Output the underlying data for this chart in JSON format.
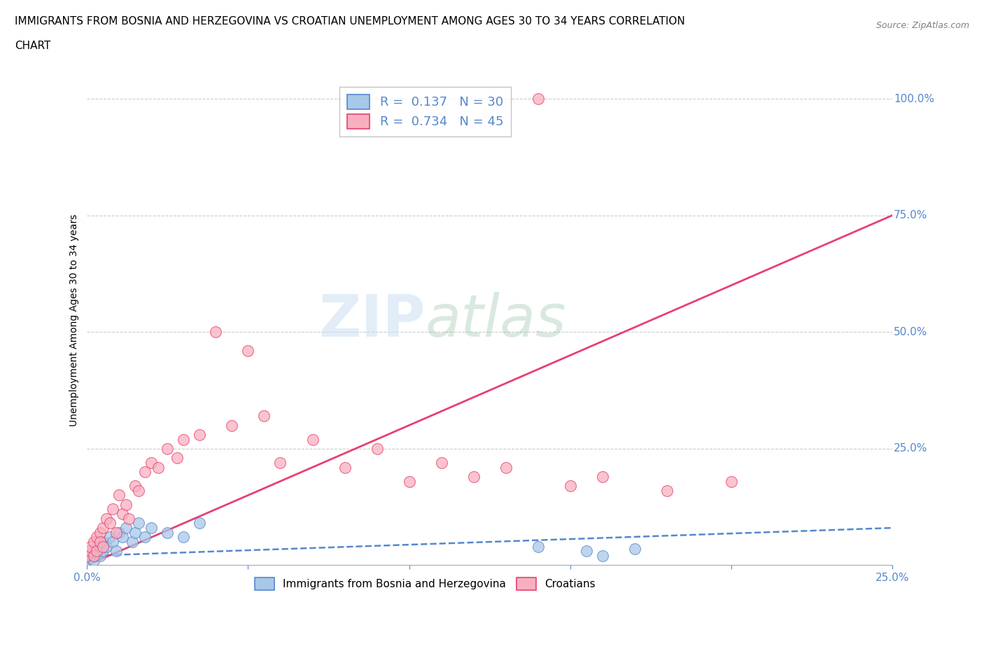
{
  "title_line1": "IMMIGRANTS FROM BOSNIA AND HERZEGOVINA VS CROATIAN UNEMPLOYMENT AMONG AGES 30 TO 34 YEARS CORRELATION",
  "title_line2": "CHART",
  "source": "Source: ZipAtlas.com",
  "ylabel_label": "Unemployment Among Ages 30 to 34 years",
  "legend1_label": "R =  0.137   N = 30",
  "legend2_label": "R =  0.734   N = 45",
  "color_blue": "#a8c8e8",
  "color_pink": "#f8b0c0",
  "line_blue": "#5588cc",
  "line_pink": "#e84070",
  "grid_color": "#cccccc",
  "watermark_zip": "ZIP",
  "watermark_atlas": "atlas",
  "xlim": [
    0.0,
    0.25
  ],
  "ylim": [
    0.0,
    1.05
  ],
  "bosnia_x": [
    0.0,
    0.001,
    0.001,
    0.002,
    0.002,
    0.003,
    0.003,
    0.004,
    0.004,
    0.005,
    0.005,
    0.006,
    0.007,
    0.008,
    0.009,
    0.01,
    0.011,
    0.012,
    0.014,
    0.015,
    0.016,
    0.018,
    0.02,
    0.025,
    0.03,
    0.035,
    0.14,
    0.155,
    0.16,
    0.17
  ],
  "bosnia_y": [
    0.01,
    0.02,
    0.015,
    0.03,
    0.01,
    0.025,
    0.04,
    0.02,
    0.035,
    0.03,
    0.05,
    0.04,
    0.06,
    0.05,
    0.03,
    0.07,
    0.06,
    0.08,
    0.05,
    0.07,
    0.09,
    0.06,
    0.08,
    0.07,
    0.06,
    0.09,
    0.04,
    0.03,
    0.02,
    0.035
  ],
  "croatian_x": [
    0.0,
    0.001,
    0.001,
    0.002,
    0.002,
    0.003,
    0.003,
    0.004,
    0.004,
    0.005,
    0.005,
    0.006,
    0.007,
    0.008,
    0.009,
    0.01,
    0.011,
    0.012,
    0.013,
    0.015,
    0.016,
    0.018,
    0.02,
    0.022,
    0.025,
    0.028,
    0.03,
    0.035,
    0.04,
    0.045,
    0.05,
    0.055,
    0.06,
    0.07,
    0.08,
    0.09,
    0.1,
    0.11,
    0.12,
    0.13,
    0.14,
    0.15,
    0.16,
    0.18,
    0.2
  ],
  "croatian_y": [
    0.02,
    0.03,
    0.04,
    0.05,
    0.02,
    0.06,
    0.03,
    0.07,
    0.05,
    0.08,
    0.04,
    0.1,
    0.09,
    0.12,
    0.07,
    0.15,
    0.11,
    0.13,
    0.1,
    0.17,
    0.16,
    0.2,
    0.22,
    0.21,
    0.25,
    0.23,
    0.27,
    0.28,
    0.5,
    0.3,
    0.46,
    0.32,
    0.22,
    0.27,
    0.21,
    0.25,
    0.18,
    0.22,
    0.19,
    0.21,
    1.0,
    0.17,
    0.19,
    0.16,
    0.18
  ],
  "title_fontsize": 11,
  "label_fontsize": 10,
  "tick_fontsize": 11,
  "bosnia_line_y0": 0.02,
  "bosnia_line_y1": 0.08,
  "croatian_line_y0": 0.0,
  "croatian_line_y1": 0.75
}
